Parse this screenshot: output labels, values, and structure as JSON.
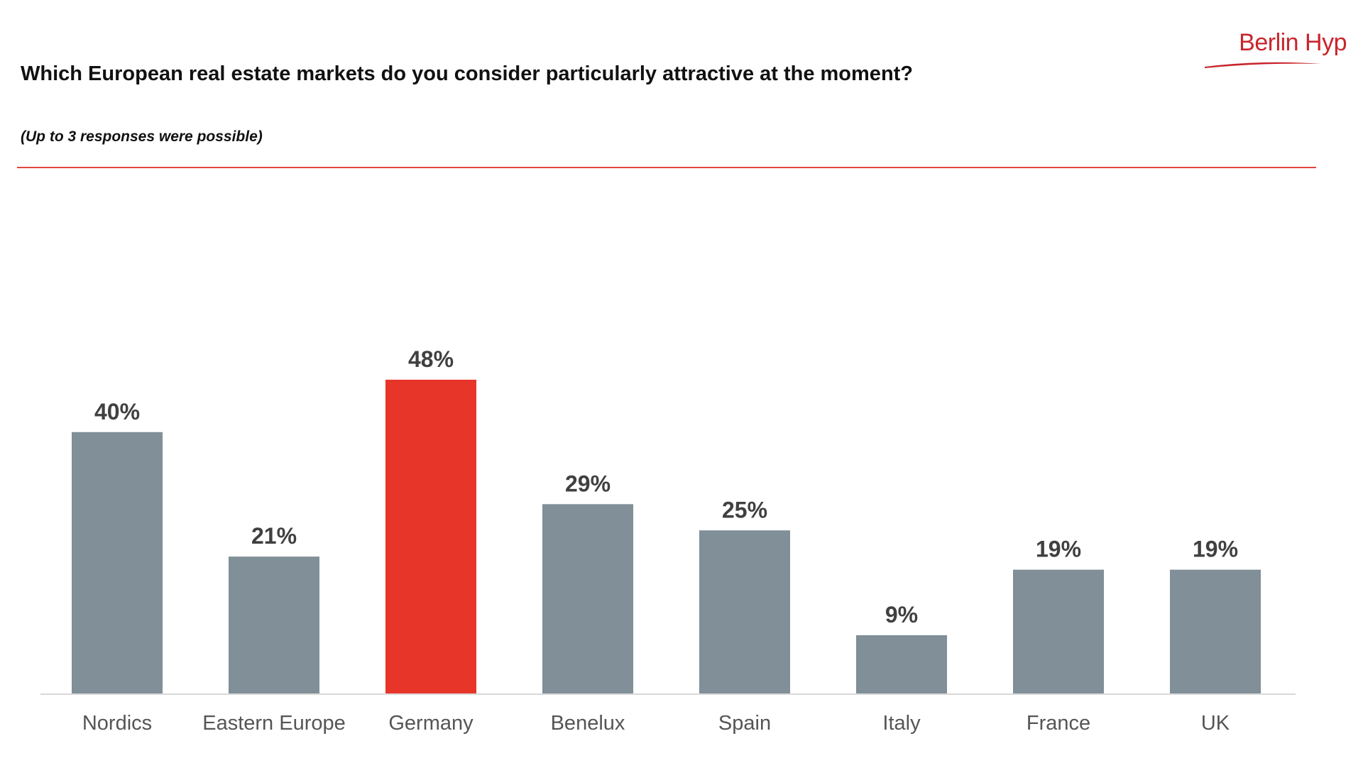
{
  "header": {
    "title": "Which European real estate markets do you consider particularly attractive at the moment?",
    "subtitle": "(Up to 3 responses were possible)",
    "logo_text": "Berlin Hyp"
  },
  "colors": {
    "accent": "#e8352a",
    "bar": "#808f98",
    "rule": "#e0473e",
    "logo": "#c9252c"
  },
  "chart_data": {
    "type": "bar",
    "categories": [
      "Nordics",
      "Eastern Europe",
      "Germany",
      "Benelux",
      "Spain",
      "Italy",
      "France",
      "UK"
    ],
    "values": [
      40,
      21,
      48,
      29,
      25,
      9,
      19,
      19
    ],
    "value_labels": [
      "40%",
      "21%",
      "48%",
      "29%",
      "25%",
      "9%",
      "19%",
      "19%"
    ],
    "highlight": "Germany",
    "ylim": [
      0,
      48
    ],
    "grid": false,
    "legend": "none"
  }
}
